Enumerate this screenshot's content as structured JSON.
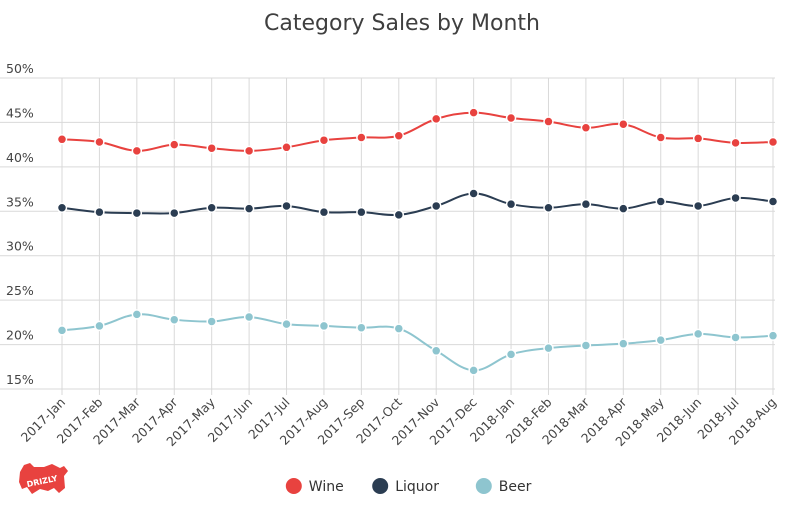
{
  "chart_data": {
    "type": "line",
    "title": "Category Sales by Month",
    "xlabel": "",
    "ylabel": "",
    "categories": [
      "2017-Jan",
      "2017-Feb",
      "2017-Mar",
      "2017-Apr",
      "2017-May",
      "2017-Jun",
      "2017-Jul",
      "2017-Aug",
      "2017-Sep",
      "2017-Oct",
      "2017-Nov",
      "2017-Dec",
      "2018-Jan",
      "2018-Feb",
      "2018-Mar",
      "2018-Apr",
      "2018-May",
      "2018-Jun",
      "2018-Jul",
      "2018-Aug"
    ],
    "ylim": [
      15,
      50
    ],
    "yticks": [
      15,
      20,
      25,
      30,
      35,
      40,
      45,
      50
    ],
    "ytick_labels": [
      "15%",
      "20%",
      "25%",
      "30%",
      "35%",
      "40%",
      "45%",
      "50%"
    ],
    "grid": true,
    "legend_position": "bottom",
    "series": [
      {
        "name": "Wine",
        "color": "#e8423f",
        "values": [
          43.1,
          42.8,
          41.8,
          42.5,
          42.1,
          41.8,
          42.2,
          43.0,
          43.3,
          43.5,
          45.4,
          46.1,
          45.5,
          45.1,
          44.4,
          44.8,
          43.3,
          43.2,
          42.7,
          42.8
        ]
      },
      {
        "name": "Liquor",
        "color": "#2b3d52",
        "values": [
          35.4,
          34.9,
          34.8,
          34.8,
          35.4,
          35.3,
          35.6,
          34.9,
          34.9,
          34.6,
          35.6,
          37.0,
          35.8,
          35.4,
          35.8,
          35.3,
          36.1,
          35.6,
          36.5,
          36.1
        ]
      },
      {
        "name": "Beer",
        "color": "#8ec5cf",
        "values": [
          21.6,
          22.1,
          23.4,
          22.8,
          22.6,
          23.1,
          22.3,
          22.1,
          21.9,
          21.8,
          19.3,
          17.1,
          18.9,
          19.6,
          19.9,
          20.1,
          20.5,
          21.2,
          20.8,
          21.0
        ]
      }
    ]
  },
  "logo": {
    "text": "DRIZLY",
    "color": "#e8423f"
  }
}
